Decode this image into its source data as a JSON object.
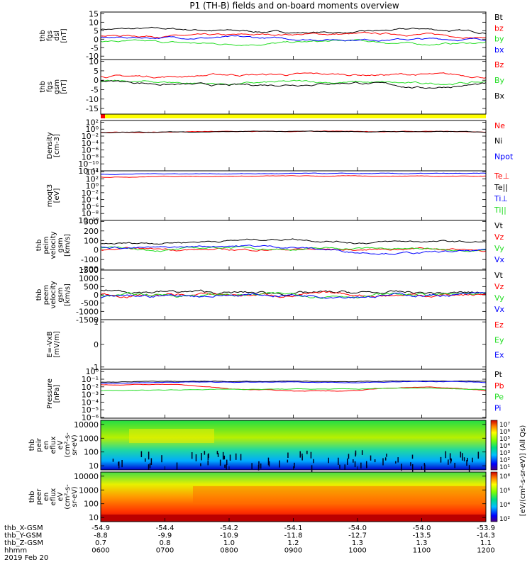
{
  "title": "P1 (TH-B) fields and on-board moments overview",
  "colors": {
    "black": "#000000",
    "red": "#ff0000",
    "green": "#22dd22",
    "blue": "#0000ff",
    "yellow": "#ffff00"
  },
  "panels": [
    {
      "id": "fgs-dsl",
      "ylabel": [
        "thb",
        "fgs",
        "dsl",
        "[nT]"
      ],
      "ticks": [
        {
          "v": 15,
          "t": "15"
        },
        {
          "v": 10,
          "t": "10"
        },
        {
          "v": 5,
          "t": "5"
        },
        {
          "v": 0,
          "t": "0"
        },
        {
          "v": -5,
          "t": "-5"
        },
        {
          "v": -10,
          "t": "-10"
        }
      ],
      "legend": [
        {
          "t": "Bt",
          "c": "black"
        },
        {
          "t": "bz",
          "c": "red"
        },
        {
          "t": "by",
          "c": "green"
        },
        {
          "t": "bx",
          "c": "blue"
        }
      ]
    },
    {
      "id": "fgs-gsm",
      "ylabel": [
        "thb",
        "fgs",
        "gsm",
        "[nT]"
      ],
      "ticks": [
        {
          "v": 10,
          "t": "10"
        },
        {
          "v": 5,
          "t": "5"
        },
        {
          "v": 0,
          "t": "0"
        },
        {
          "v": -5,
          "t": "-5"
        },
        {
          "v": -10,
          "t": "-10"
        },
        {
          "v": -15,
          "t": "-15"
        }
      ],
      "legend": [
        {
          "t": "Bz",
          "c": "red"
        },
        {
          "t": "By",
          "c": "green"
        },
        {
          "t": "Bx",
          "c": "black"
        }
      ]
    },
    {
      "id": "density",
      "ylabel": [
        "Density",
        "[cm-3]"
      ],
      "ticks": [
        {
          "v": 2,
          "t": "10²"
        },
        {
          "v": 0,
          "t": "10⁰"
        },
        {
          "v": -2,
          "t": "10⁻²"
        },
        {
          "v": -4,
          "t": "10⁻⁴"
        },
        {
          "v": -6,
          "t": "10⁻⁶"
        },
        {
          "v": -8,
          "t": "10⁻⁸"
        },
        {
          "v": -10,
          "t": "10⁻¹⁰"
        },
        {
          "v": -12,
          "t": "10⁻¹²"
        }
      ],
      "legend": [
        {
          "t": "Ne",
          "c": "red"
        },
        {
          "t": "Ni",
          "c": "black"
        },
        {
          "t": "Npot",
          "c": "blue"
        }
      ]
    },
    {
      "id": "moqt3",
      "ylabel": [
        "moqt3",
        "[eV]"
      ],
      "ticks": [
        {
          "v": 4,
          "t": "10⁴"
        },
        {
          "v": 2,
          "t": "10²"
        },
        {
          "v": 0,
          "t": "10⁰"
        },
        {
          "v": -2,
          "t": "10⁻²"
        },
        {
          "v": -4,
          "t": "10⁻⁴"
        },
        {
          "v": -6,
          "t": "10⁻⁶"
        },
        {
          "v": -8,
          "t": "10⁻⁸"
        },
        {
          "v": -10,
          "t": "10⁻¹⁰"
        }
      ],
      "legend": [
        {
          "t": "Te⊥",
          "c": "red"
        },
        {
          "t": "Te||",
          "c": "black"
        },
        {
          "t": "Ti⊥",
          "c": "blue"
        },
        {
          "t": "Ti||",
          "c": "green"
        }
      ]
    },
    {
      "id": "peim-velocity",
      "ylabel": [
        "thb",
        "peim",
        "velocity",
        "gsm",
        "[km/s]"
      ],
      "ticks": [
        {
          "v": 300,
          "t": "300"
        },
        {
          "v": 200,
          "t": "200"
        },
        {
          "v": 100,
          "t": "100"
        },
        {
          "v": 0,
          "t": "0"
        },
        {
          "v": -100,
          "t": "-100"
        },
        {
          "v": -200,
          "t": "-200"
        }
      ],
      "legend": [
        {
          "t": "Vt",
          "c": "black"
        },
        {
          "t": "Vz",
          "c": "red"
        },
        {
          "t": "Vy",
          "c": "green"
        },
        {
          "t": "Vx",
          "c": "blue"
        }
      ]
    },
    {
      "id": "peem-velocity",
      "ylabel": [
        "thb",
        "peem",
        "velocity",
        "gsm",
        "[km/s]"
      ],
      "ticks": [
        {
          "v": 1500,
          "t": "1500"
        },
        {
          "v": 1000,
          "t": "1000"
        },
        {
          "v": 500,
          "t": "500"
        },
        {
          "v": 0,
          "t": "0"
        },
        {
          "v": -500,
          "t": "-500"
        },
        {
          "v": -1000,
          "t": "-1000"
        },
        {
          "v": -1500,
          "t": "-1500"
        }
      ],
      "legend": [
        {
          "t": "Vt",
          "c": "black"
        },
        {
          "t": "Vz",
          "c": "red"
        },
        {
          "t": "Vy",
          "c": "green"
        },
        {
          "t": "Vx",
          "c": "blue"
        }
      ]
    },
    {
      "id": "efield",
      "ylabel": [
        "E=-VxB",
        "[mV/m]"
      ],
      "ticks": [
        {
          "v": 1,
          "t": "1"
        },
        {
          "v": 0,
          "t": "0"
        },
        {
          "v": -1,
          "t": "-1"
        }
      ],
      "legend": [
        {
          "t": "Ez",
          "c": "red"
        },
        {
          "t": "Ey",
          "c": "green"
        },
        {
          "t": "Ex",
          "c": "blue"
        }
      ]
    },
    {
      "id": "pressure",
      "ylabel": [
        "Pressure",
        "[nPa]"
      ],
      "ticks": [
        {
          "v": 0,
          "t": "10⁰"
        },
        {
          "v": -1,
          "t": "10⁻¹"
        },
        {
          "v": -2,
          "t": "10⁻²"
        },
        {
          "v": -3,
          "t": "10⁻³"
        },
        {
          "v": -4,
          "t": "10⁻⁴"
        },
        {
          "v": -5,
          "t": "10⁻⁵"
        },
        {
          "v": -6,
          "t": "10⁻⁶"
        }
      ],
      "legend": [
        {
          "t": "Pt",
          "c": "black"
        },
        {
          "t": "Pb",
          "c": "red"
        },
        {
          "t": "Pe",
          "c": "green"
        },
        {
          "t": "Pi",
          "c": "blue"
        }
      ]
    },
    {
      "id": "peir-spec",
      "ylabel": [
        "thb",
        "peir",
        "en",
        "eflux",
        "eV",
        "(cm²-s-",
        "sr-eV)"
      ],
      "ticks": [
        {
          "v": 4,
          "t": "10000"
        },
        {
          "v": 3,
          "t": "1000"
        },
        {
          "v": 2,
          "t": "100"
        },
        {
          "v": 1,
          "t": "10"
        }
      ],
      "legend": []
    },
    {
      "id": "peer-spec",
      "ylabel": [
        "thb",
        "peer",
        "en",
        "eflux",
        "eV",
        "(cm²-s-",
        "sr-eV)"
      ],
      "ticks": [
        {
          "v": 4,
          "t": "10000"
        },
        {
          "v": 3,
          "t": "1000"
        },
        {
          "v": 2,
          "t": "100"
        },
        {
          "v": 1,
          "t": "10"
        }
      ],
      "legend": []
    }
  ],
  "colorbars": [
    {
      "id": "cb-ion",
      "ticks": [
        "10⁷",
        "10⁶",
        "10⁵",
        "10⁴",
        "10³",
        "10²",
        "10¹"
      ]
    },
    {
      "id": "cb-electron",
      "ticks": [
        "10⁸",
        "10⁶",
        "10⁴",
        "10²"
      ]
    }
  ],
  "colorbar_label": "[eV/(cm²-s-sr-eV)] (All Qs)",
  "xaxis": {
    "row_labels": [
      "thb_X-GSM",
      "thb_Y-GSM",
      "thb_Z-GSM",
      "hhmm"
    ],
    "date": "2019 Feb 20",
    "columns": [
      {
        "x": "-54.9",
        "y": "-8.8",
        "z": "0.7",
        "t": "0600"
      },
      {
        "x": "-54.4",
        "y": "-9.9",
        "z": "0.8",
        "t": "0700"
      },
      {
        "x": "-54.2",
        "y": "-10.9",
        "z": "1.0",
        "t": "0800"
      },
      {
        "x": "-54.1",
        "y": "-11.8",
        "z": "1.2",
        "t": "0900"
      },
      {
        "x": "-54.0",
        "y": "-12.7",
        "z": "1.3",
        "t": "1000"
      },
      {
        "x": "-54.0",
        "y": "-13.5",
        "z": "1.3",
        "t": "1100"
      },
      {
        "x": "-53.9",
        "y": "-14.3",
        "z": "1.1",
        "t": "1200"
      }
    ]
  },
  "chart_data": {
    "type": "line",
    "title": "P1 (TH-B) fields and on-board moments overview",
    "x_unit": "hhmm",
    "xlim": [
      "0600",
      "1200"
    ],
    "panels": [
      {
        "name": "thb fgs dsl [nT]",
        "ylim": [
          -12,
          16
        ],
        "x": [
          "0600",
          "0700",
          "0800",
          "0900",
          "1000",
          "1100",
          "1200"
        ],
        "series": [
          {
            "name": "Bt",
            "values": [
              6,
              6,
              5,
              4,
              4,
              6,
              4
            ]
          },
          {
            "name": "bz",
            "values": [
              2,
              2,
              2,
              3,
              3,
              3,
              1
            ]
          },
          {
            "name": "by",
            "values": [
              -1,
              -2,
              -3,
              -2,
              -1,
              -3,
              -2
            ]
          },
          {
            "name": "bx",
            "values": [
              1,
              1,
              1,
              0,
              0,
              0,
              0
            ]
          }
        ]
      },
      {
        "name": "thb fgs gsm [nT]",
        "ylim": [
          -18,
          11
        ],
        "x": [
          "0600",
          "0700",
          "0800",
          "0900",
          "1000",
          "1100",
          "1200"
        ],
        "series": [
          {
            "name": "Bz",
            "values": [
              2,
              2,
              3,
              3,
              3,
              3,
              2
            ]
          },
          {
            "name": "By",
            "values": [
              -1,
              -1,
              -2,
              -1,
              -1,
              -2,
              -1
            ]
          },
          {
            "name": "Bx",
            "values": [
              0,
              -2,
              -3,
              -2,
              -1,
              -4,
              -2
            ]
          }
        ]
      },
      {
        "name": "Density [cm-3]",
        "scale": "log",
        "ylim": [
          1e-12,
          100.0
        ],
        "series": [
          {
            "name": "Ne",
            "values": [
              0.1,
              0.15,
              0.2,
              0.2,
              0.2,
              0.2,
              0.15
            ]
          },
          {
            "name": "Ni",
            "values": [
              0.1,
              0.15,
              0.2,
              0.2,
              0.2,
              0.2,
              0.15
            ]
          }
        ]
      },
      {
        "name": "moqt3 [eV]",
        "scale": "log",
        "ylim": [
          1e-10,
          10000.0
        ],
        "series": [
          {
            "name": "Te⊥",
            "values": [
              300,
              500,
              600,
              600,
              600,
              700,
              600
            ]
          },
          {
            "name": "Ti⊥",
            "values": [
              2000,
              3000,
              3000,
              3000,
              3000,
              3000,
              3000
            ]
          }
        ]
      },
      {
        "name": "thb peim velocity gsm [km/s]",
        "ylim": [
          -200,
          300
        ],
        "x": [
          "0600",
          "0700",
          "0800",
          "0900",
          "1000",
          "1100",
          "1200"
        ],
        "series": [
          {
            "name": "Vt",
            "values": [
              60,
              80,
              100,
              120,
              80,
              90,
              80
            ]
          },
          {
            "name": "Vz",
            "values": [
              0,
              10,
              0,
              10,
              0,
              20,
              0
            ]
          },
          {
            "name": "Vy",
            "values": [
              20,
              0,
              30,
              10,
              20,
              10,
              10
            ]
          },
          {
            "name": "Vx",
            "values": [
              30,
              20,
              50,
              30,
              -20,
              -30,
              -10
            ]
          }
        ]
      },
      {
        "name": "thb peem velocity gsm [km/s]",
        "ylim": [
          -1500,
          1500
        ],
        "x": [
          "0600",
          "0700",
          "0800",
          "0900",
          "1000",
          "1100",
          "1200"
        ],
        "series": [
          {
            "name": "Vt",
            "values": [
              300,
              200,
              100,
              100,
              100,
              100,
              100
            ]
          },
          {
            "name": "Vz",
            "values": [
              0,
              0,
              0,
              0,
              0,
              0,
              0
            ]
          },
          {
            "name": "Vy",
            "values": [
              0,
              0,
              0,
              0,
              0,
              0,
              0
            ]
          },
          {
            "name": "Vx",
            "values": [
              -200,
              -50,
              0,
              0,
              0,
              0,
              0
            ]
          }
        ]
      },
      {
        "name": "E=-VxB [mV/m]",
        "ylim": [
          -1,
          1
        ],
        "series": []
      },
      {
        "name": "Pressure [nPa]",
        "scale": "log",
        "ylim": [
          1e-06,
          1
        ],
        "x": [
          "0600",
          "0700",
          "0800",
          "0900",
          "1000",
          "1100",
          "1200"
        ],
        "series": [
          {
            "name": "Pt",
            "values": [
              0.04,
              0.05,
              0.05,
              0.05,
              0.05,
              0.06,
              0.05
            ]
          },
          {
            "name": "Pb",
            "values": [
              0.02,
              0.02,
              0.005,
              0.003,
              0.003,
              0.01,
              0.003
            ]
          },
          {
            "name": "Pe",
            "values": [
              0.003,
              0.004,
              0.005,
              0.005,
              0.005,
              0.008,
              0.004
            ]
          },
          {
            "name": "Pi",
            "values": [
              0.03,
              0.04,
              0.04,
              0.04,
              0.04,
              0.05,
              0.04
            ]
          }
        ]
      },
      {
        "name": "thb peir en eflux",
        "type": "heatmap",
        "scale": "log",
        "ylim": [
          5,
          20000
        ],
        "zlim": [
          10,
          10000000.0
        ]
      },
      {
        "name": "thb peer en eflux",
        "type": "heatmap",
        "scale": "log",
        "ylim": [
          5,
          20000
        ],
        "zlim": [
          100,
          1000000000.0
        ]
      }
    ]
  }
}
